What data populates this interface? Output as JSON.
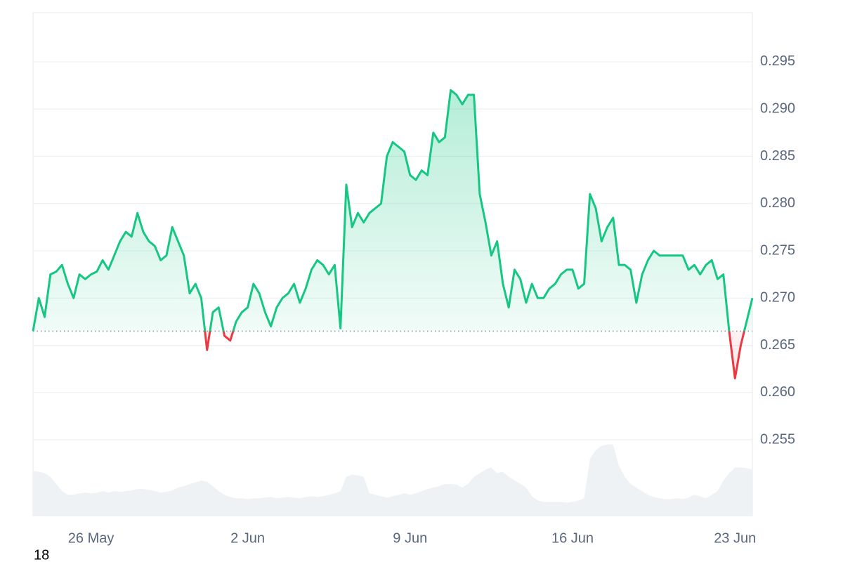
{
  "chart_data": {
    "type": "line",
    "categories": [
      null,
      null,
      null,
      null,
      null,
      null,
      null,
      null,
      null,
      null,
      "26 May",
      null,
      null,
      null,
      null,
      null,
      null,
      null,
      null,
      null,
      null,
      null,
      null,
      null,
      null,
      null,
      null,
      null,
      null,
      null,
      null,
      null,
      null,
      null,
      null,
      null,
      null,
      "2 Jun",
      null,
      null,
      null,
      null,
      null,
      null,
      null,
      null,
      null,
      null,
      null,
      null,
      null,
      null,
      null,
      null,
      null,
      null,
      null,
      null,
      null,
      null,
      null,
      null,
      null,
      null,
      null,
      "9 Jun",
      null,
      null,
      null,
      null,
      null,
      null,
      null,
      null,
      null,
      null,
      null,
      null,
      null,
      null,
      null,
      null,
      null,
      null,
      null,
      null,
      null,
      null,
      null,
      null,
      null,
      null,
      null,
      "16 Jun",
      null,
      null,
      null,
      null,
      null,
      null,
      null,
      null,
      null,
      null,
      null,
      null,
      null,
      null,
      null,
      null,
      null,
      null,
      null,
      null,
      null,
      null,
      null,
      null,
      null,
      null,
      null,
      "23 Jun",
      null,
      null,
      null
    ],
    "series": [
      {
        "color": "#16c784",
        "negative_color": "#ea3943",
        "values": [
          0.2665,
          0.27,
          0.268,
          0.2725,
          0.2728,
          0.2735,
          0.2715,
          0.27,
          0.2725,
          0.272,
          0.2725,
          0.2728,
          0.274,
          0.273,
          0.2745,
          0.276,
          0.277,
          0.2765,
          0.279,
          0.277,
          0.276,
          0.2755,
          0.274,
          0.2745,
          0.2775,
          0.276,
          0.2745,
          0.2705,
          0.2715,
          0.27,
          0.2645,
          0.2685,
          0.269,
          0.266,
          0.2655,
          0.2675,
          0.2685,
          0.269,
          0.2715,
          0.2705,
          0.2685,
          0.267,
          0.269,
          0.27,
          0.2705,
          0.2715,
          0.2695,
          0.271,
          0.273,
          0.274,
          0.2735,
          0.2725,
          0.2735,
          0.2668,
          0.282,
          0.2775,
          0.279,
          0.278,
          0.279,
          0.2795,
          0.28,
          0.285,
          0.2865,
          0.286,
          0.2855,
          0.283,
          0.2825,
          0.2835,
          0.283,
          0.2875,
          0.2865,
          0.287,
          0.292,
          0.2915,
          0.2905,
          0.2915,
          0.2915,
          0.281,
          0.278,
          0.2745,
          0.276,
          0.2715,
          0.269,
          0.273,
          0.272,
          0.2695,
          0.2715,
          0.27,
          0.27,
          0.271,
          0.2715,
          0.2725,
          0.273,
          0.273,
          0.271,
          0.2715,
          0.281,
          0.2795,
          0.276,
          0.2775,
          0.2785,
          0.2735,
          0.2735,
          0.273,
          0.2695,
          0.2725,
          0.274,
          0.275,
          0.2745,
          0.2745,
          0.2745,
          0.2745,
          0.2745,
          0.273,
          0.2735,
          0.2725,
          0.2735,
          0.274,
          0.272,
          0.2725,
          0.2665,
          0.2615,
          0.265,
          0.2675,
          0.27
        ]
      },
      {
        "color": "#eff2f5",
        "axis": "y2",
        "values": [
          63,
          62,
          60,
          55,
          45,
          35,
          30,
          30,
          32,
          33,
          32,
          33,
          35,
          33,
          35,
          34,
          35,
          36,
          38,
          38,
          37,
          35,
          33,
          34,
          36,
          40,
          42,
          45,
          47,
          50,
          48,
          42,
          35,
          30,
          27,
          25,
          25,
          24,
          25,
          25,
          26,
          27,
          25,
          26,
          27,
          26,
          25,
          27,
          28,
          27,
          28,
          30,
          32,
          35,
          55,
          58,
          57,
          55,
          32,
          30,
          28,
          26,
          28,
          30,
          32,
          30,
          32,
          35,
          38,
          40,
          42,
          45,
          45,
          44,
          40,
          45,
          55,
          60,
          65,
          68,
          60,
          62,
          55,
          50,
          45,
          40,
          28,
          22,
          20,
          20,
          20,
          20,
          19,
          20,
          22,
          25,
          80,
          92,
          98,
          100,
          100,
          70,
          55,
          45,
          40,
          35,
          30,
          27,
          25,
          24,
          24,
          25,
          24,
          26,
          30,
          28,
          25,
          30,
          35,
          50,
          60,
          68,
          68,
          67,
          65
        ]
      }
    ],
    "baseline": 0.2665,
    "ylim": [
      0.2469,
      0.3002
    ],
    "yticks": [
      0.255,
      {
        "value": 0.26,
        "label": "0.260"
      },
      0.265,
      {
        "value": 0.27,
        "label": "0.270"
      },
      0.275,
      {
        "value": 0.28,
        "label": "0.280"
      },
      0.285,
      {
        "value": 0.29,
        "label": "0.290"
      },
      0.295
    ],
    "y2lim": [
      0,
      700
    ],
    "grid": true,
    "annotation": "18"
  }
}
